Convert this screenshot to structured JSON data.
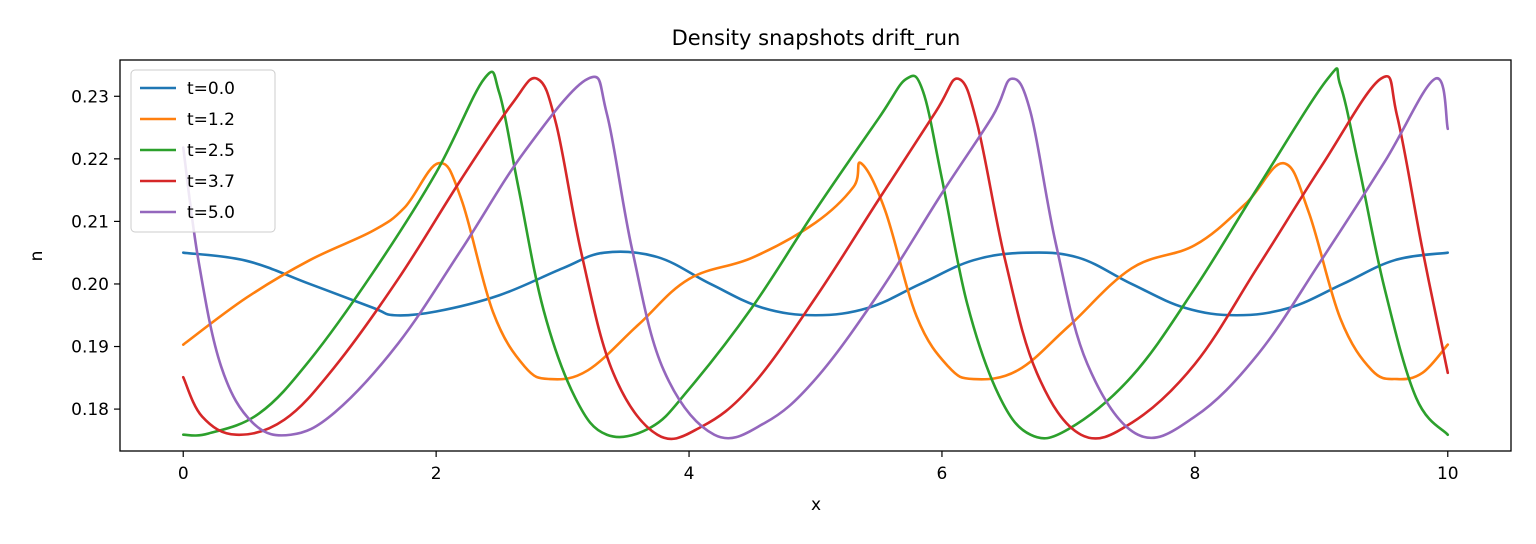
{
  "chart_data": {
    "type": "line",
    "title": "Density snapshots  drift_run",
    "xlabel": "x",
    "ylabel": "n",
    "xlim": [
      -0.5,
      10.5
    ],
    "ylim": [
      0.1733,
      0.2358
    ],
    "xticks": [
      0,
      2,
      4,
      6,
      8,
      10
    ],
    "xtick_labels": [
      "0",
      "2",
      "4",
      "6",
      "8",
      "10"
    ],
    "yticks": [
      0.18,
      0.19,
      0.2,
      0.21,
      0.22,
      0.23
    ],
    "ytick_labels": [
      "0.18",
      "0.19",
      "0.20",
      "0.21",
      "0.22",
      "0.23"
    ],
    "grid": false,
    "legend_position": "top-left",
    "series": [
      {
        "name": "t=0.0",
        "color": "#1f77b4",
        "points": [
          [
            0.0,
            0.205
          ],
          [
            0.5,
            0.2037
          ],
          [
            1.0,
            0.2
          ],
          [
            1.5,
            0.1962
          ],
          [
            1.67,
            0.195
          ],
          [
            2.0,
            0.1956
          ],
          [
            2.5,
            0.1982
          ],
          [
            3.0,
            0.2025
          ],
          [
            3.33,
            0.205
          ],
          [
            3.75,
            0.2043
          ],
          [
            4.17,
            0.2
          ],
          [
            4.58,
            0.1962
          ],
          [
            5.0,
            0.195
          ],
          [
            5.42,
            0.1962
          ],
          [
            5.83,
            0.2
          ],
          [
            6.25,
            0.2038
          ],
          [
            6.67,
            0.205
          ],
          [
            7.08,
            0.2042
          ],
          [
            7.5,
            0.2
          ],
          [
            7.92,
            0.1962
          ],
          [
            8.33,
            0.195
          ],
          [
            8.75,
            0.1962
          ],
          [
            9.17,
            0.2
          ],
          [
            9.58,
            0.2038
          ],
          [
            10.0,
            0.205
          ]
        ]
      },
      {
        "name": "t=1.2",
        "color": "#ff7f0e",
        "points": [
          [
            0.0,
            0.1903
          ],
          [
            0.5,
            0.1978
          ],
          [
            1.0,
            0.2038
          ],
          [
            1.5,
            0.2085
          ],
          [
            1.75,
            0.2122
          ],
          [
            2.02,
            0.2193
          ],
          [
            2.2,
            0.2135
          ],
          [
            2.45,
            0.1955
          ],
          [
            2.7,
            0.1868
          ],
          [
            2.9,
            0.1848
          ],
          [
            3.2,
            0.1862
          ],
          [
            3.6,
            0.1935
          ],
          [
            4.0,
            0.2008
          ],
          [
            4.5,
            0.2042
          ],
          [
            5.0,
            0.2098
          ],
          [
            5.3,
            0.2155
          ],
          [
            5.36,
            0.2193
          ],
          [
            5.55,
            0.2118
          ],
          [
            5.8,
            0.1948
          ],
          [
            6.05,
            0.1868
          ],
          [
            6.25,
            0.1848
          ],
          [
            6.6,
            0.1862
          ],
          [
            7.0,
            0.1932
          ],
          [
            7.5,
            0.2025
          ],
          [
            8.0,
            0.2062
          ],
          [
            8.4,
            0.2128
          ],
          [
            8.7,
            0.2193
          ],
          [
            8.9,
            0.2115
          ],
          [
            9.15,
            0.1945
          ],
          [
            9.4,
            0.1862
          ],
          [
            9.6,
            0.1848
          ],
          [
            9.8,
            0.1858
          ],
          [
            10.0,
            0.1903
          ]
        ]
      },
      {
        "name": "t=2.5",
        "color": "#2ca02c",
        "points": [
          [
            0.0,
            0.1759
          ],
          [
            0.2,
            0.1761
          ],
          [
            0.6,
            0.1793
          ],
          [
            1.0,
            0.1878
          ],
          [
            1.5,
            0.2018
          ],
          [
            2.0,
            0.2178
          ],
          [
            2.38,
            0.2328
          ],
          [
            2.5,
            0.2305
          ],
          [
            2.65,
            0.2155
          ],
          [
            2.85,
            0.1958
          ],
          [
            3.1,
            0.1818
          ],
          [
            3.35,
            0.1759
          ],
          [
            3.7,
            0.1771
          ],
          [
            4.0,
            0.1832
          ],
          [
            4.5,
            0.1963
          ],
          [
            5.0,
            0.2118
          ],
          [
            5.5,
            0.2265
          ],
          [
            5.72,
            0.2328
          ],
          [
            5.85,
            0.2308
          ],
          [
            6.0,
            0.2168
          ],
          [
            6.2,
            0.1968
          ],
          [
            6.45,
            0.1822
          ],
          [
            6.7,
            0.1759
          ],
          [
            7.0,
            0.1768
          ],
          [
            7.5,
            0.1852
          ],
          [
            8.0,
            0.1993
          ],
          [
            8.5,
            0.2155
          ],
          [
            9.05,
            0.2328
          ],
          [
            9.15,
            0.2318
          ],
          [
            9.3,
            0.2185
          ],
          [
            9.5,
            0.1993
          ],
          [
            9.75,
            0.1818
          ],
          [
            10.0,
            0.1759
          ]
        ]
      },
      {
        "name": "t=3.7",
        "color": "#d62728",
        "points": [
          [
            0.0,
            0.1851
          ],
          [
            0.15,
            0.1788
          ],
          [
            0.42,
            0.1759
          ],
          [
            0.8,
            0.1783
          ],
          [
            1.2,
            0.1868
          ],
          [
            1.7,
            0.2008
          ],
          [
            2.2,
            0.2168
          ],
          [
            2.6,
            0.2288
          ],
          [
            2.8,
            0.2328
          ],
          [
            2.95,
            0.2255
          ],
          [
            3.15,
            0.2048
          ],
          [
            3.4,
            0.1858
          ],
          [
            3.75,
            0.1759
          ],
          [
            4.1,
            0.1772
          ],
          [
            4.5,
            0.1838
          ],
          [
            5.0,
            0.1978
          ],
          [
            5.5,
            0.2135
          ],
          [
            5.95,
            0.2275
          ],
          [
            6.13,
            0.2328
          ],
          [
            6.28,
            0.2255
          ],
          [
            6.5,
            0.2038
          ],
          [
            6.75,
            0.1858
          ],
          [
            7.1,
            0.1759
          ],
          [
            7.5,
            0.1778
          ],
          [
            8.0,
            0.1872
          ],
          [
            8.5,
            0.2028
          ],
          [
            9.0,
            0.2188
          ],
          [
            9.47,
            0.2328
          ],
          [
            9.6,
            0.2268
          ],
          [
            9.8,
            0.2055
          ],
          [
            10.0,
            0.1858
          ]
        ]
      },
      {
        "name": "t=5.0",
        "color": "#9467bd",
        "points": [
          [
            0.0,
            0.2218
          ],
          [
            0.12,
            0.2038
          ],
          [
            0.3,
            0.1868
          ],
          [
            0.55,
            0.1778
          ],
          [
            0.85,
            0.1759
          ],
          [
            1.2,
            0.1795
          ],
          [
            1.7,
            0.1905
          ],
          [
            2.2,
            0.2055
          ],
          [
            2.7,
            0.2212
          ],
          [
            3.2,
            0.2328
          ],
          [
            3.35,
            0.2272
          ],
          [
            3.55,
            0.2055
          ],
          [
            3.8,
            0.1862
          ],
          [
            4.2,
            0.1759
          ],
          [
            4.6,
            0.1778
          ],
          [
            5.0,
            0.1848
          ],
          [
            5.5,
            0.1985
          ],
          [
            6.0,
            0.2145
          ],
          [
            6.4,
            0.2268
          ],
          [
            6.55,
            0.2328
          ],
          [
            6.7,
            0.2275
          ],
          [
            6.9,
            0.2065
          ],
          [
            7.15,
            0.1872
          ],
          [
            7.55,
            0.1759
          ],
          [
            8.0,
            0.1788
          ],
          [
            8.5,
            0.1888
          ],
          [
            9.0,
            0.2038
          ],
          [
            9.5,
            0.2195
          ],
          [
            9.9,
            0.2328
          ],
          [
            10.0,
            0.2248
          ]
        ]
      }
    ]
  }
}
